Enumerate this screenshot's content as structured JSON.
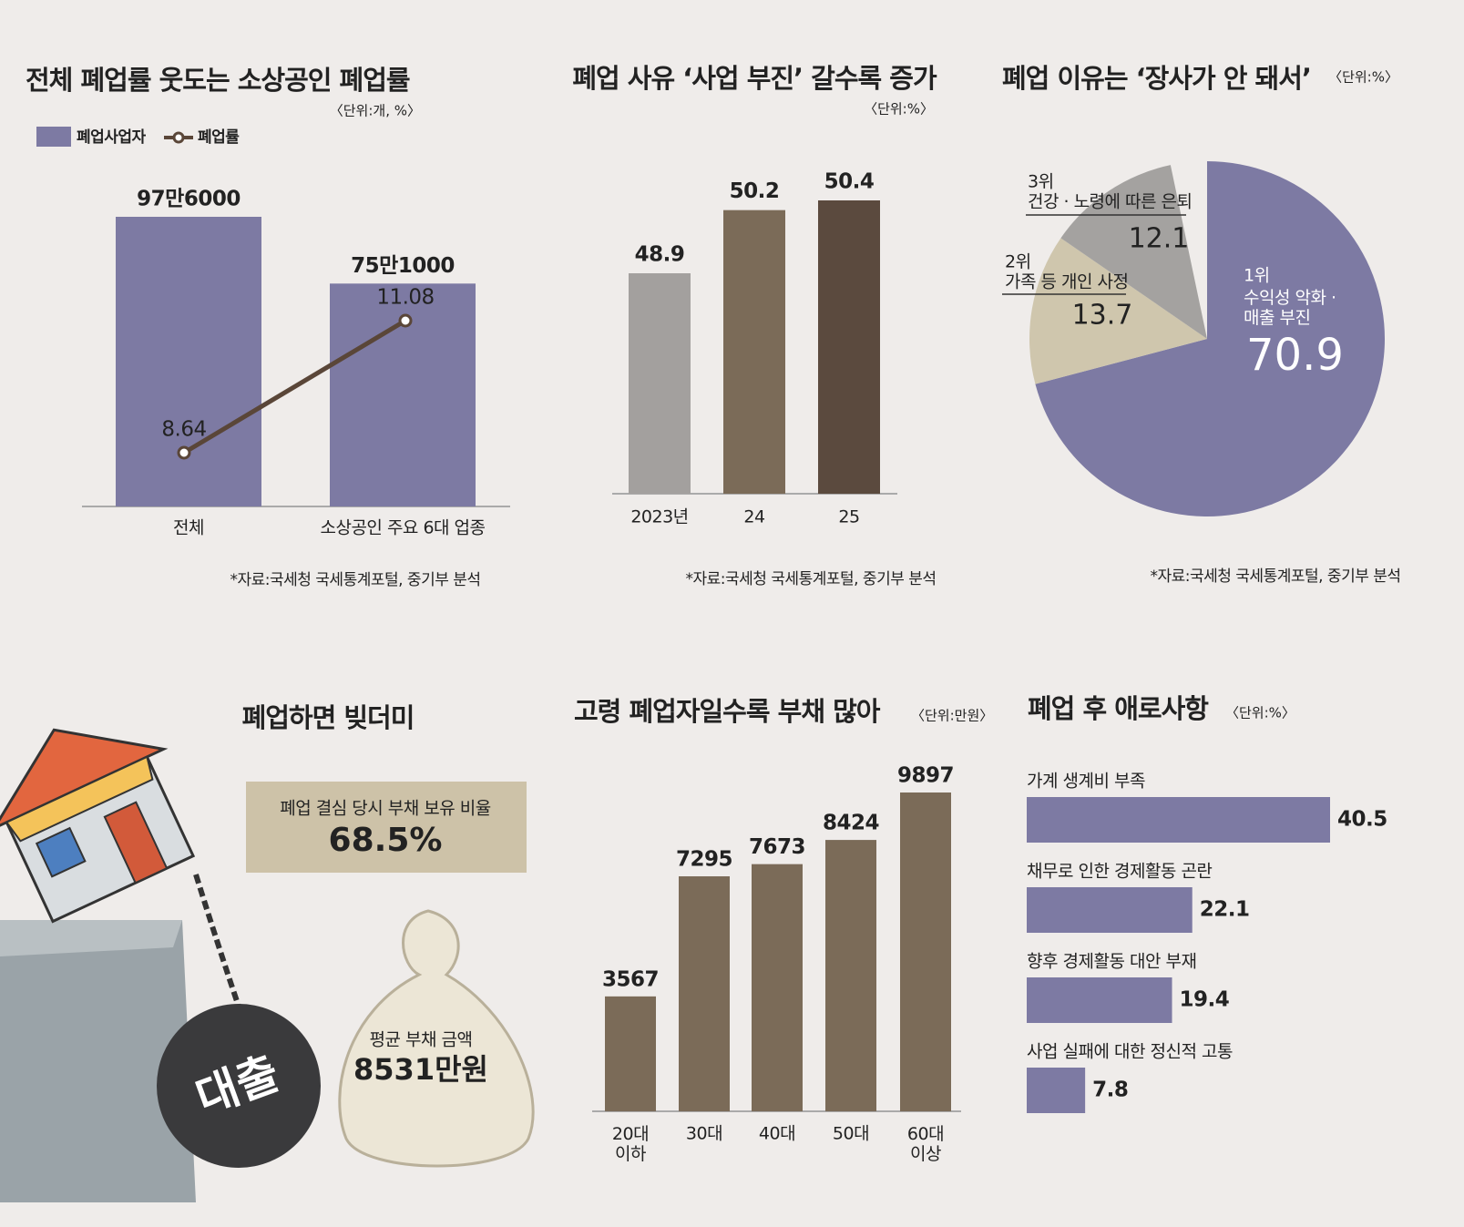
{
  "chart_data": [
    {
      "type": "combo",
      "title": "전체 폐업률 웃도는 소상공인 폐업률",
      "unit": "〈단위:개, %〉",
      "categories": [
        "전체",
        "소상공인 주요 6대 업종"
      ],
      "series": [
        {
          "name": "폐업사업자",
          "color": "#7d7aa3",
          "values": [
            976000,
            751000
          ],
          "value_labels": [
            "97만6000",
            "75만1000"
          ]
        },
        {
          "name": "폐업률",
          "color": "#5a4638",
          "values": [
            8.64,
            11.08
          ]
        }
      ],
      "source": "*자료:국세청 국세통계포털, 중기부 분석"
    },
    {
      "type": "bar",
      "title": "폐업 사유 ‘사업 부진’ 갈수록 증가",
      "unit": "〈단위:%〉",
      "categories": [
        "2023년",
        "24",
        "25"
      ],
      "values": [
        48.9,
        50.2,
        50.4
      ],
      "colors": [
        "#a3a09e",
        "#7b6b58",
        "#5b4a3e"
      ],
      "source": "*자료:국세청 국세통계포털, 중기부 분석"
    },
    {
      "type": "pie",
      "title": "폐업 이유는 ‘장사가 안 돼서’",
      "unit": "〈단위:%〉",
      "ranks": [
        "1위",
        "2위",
        "3위"
      ],
      "categories": [
        "수익성 악화 ·\n매출 부진",
        "가족 등 개인 사정",
        "건강 · 노령에 따른 은퇴"
      ],
      "values": [
        70.9,
        13.7,
        12.1
      ],
      "colors": [
        "#7d7aa3",
        "#cfc6ad",
        "#a4a2a0"
      ],
      "source": "*자료:국세청 국세통계포털, 중기부 분석"
    },
    {
      "type": "bar",
      "title": "고령 폐업자일수록 부채 많아",
      "unit": "〈단위:만원〉",
      "categories": [
        "20대\n이하",
        "30대",
        "40대",
        "50대",
        "60대\n이상"
      ],
      "values": [
        3567,
        7295,
        7673,
        8424,
        9897
      ],
      "color": "#7b6b58"
    },
    {
      "type": "hbar",
      "title": "폐업 후 애로사항",
      "unit": "〈단위:%〉",
      "categories": [
        "가계 생계비 부족",
        "채무로 인한 경제활동 곤란",
        "향후 경제활동 대안 부재",
        "사업 실패에 대한 정신적 고통"
      ],
      "values": [
        40.5,
        22.1,
        19.4,
        7.8
      ],
      "color": "#7d7aa3"
    }
  ],
  "debt_panel": {
    "title": "폐업하면 빚더미",
    "box_label": "폐업 결심 당시 부채 보유 비율",
    "box_value": "68.5%",
    "bag_label": "평균 부채 금액",
    "bag_value": "8531만원",
    "ball_label": "대출"
  }
}
